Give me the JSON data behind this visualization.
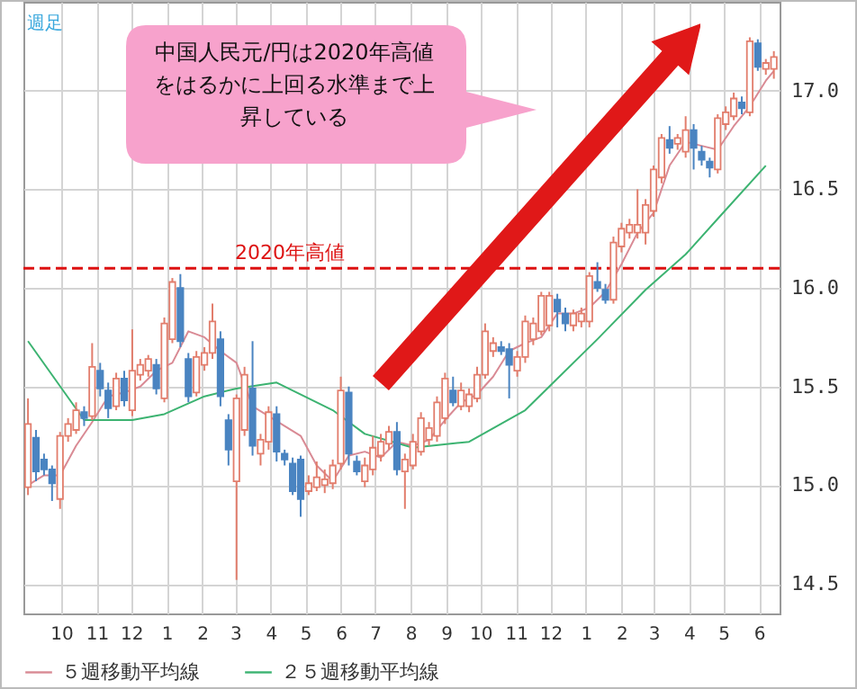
{
  "chart_data": {
    "type": "candlestick",
    "x": [
      "2019-09-02",
      "2019-09-09",
      "2019-09-16",
      "2019-09-23",
      "2019-09-30",
      "2019-10-07",
      "2019-10-14",
      "2019-10-21",
      "2019-10-28",
      "2019-11-04",
      "2019-11-11",
      "2019-11-18",
      "2019-11-25",
      "2019-12-02",
      "2019-12-09",
      "2019-12-16",
      "2019-12-23",
      "2019-12-30",
      "2020-01-06",
      "2020-01-13",
      "2020-01-20",
      "2020-01-27",
      "2020-02-03",
      "2020-02-10",
      "2020-02-17",
      "2020-02-24",
      "2020-03-02",
      "2020-03-09",
      "2020-03-16",
      "2020-03-23",
      "2020-03-30",
      "2020-04-06",
      "2020-04-13",
      "2020-04-20",
      "2020-04-27",
      "2020-05-04",
      "2020-05-11",
      "2020-05-18",
      "2020-05-25",
      "2020-06-01",
      "2020-06-08",
      "2020-06-15",
      "2020-06-22",
      "2020-06-29",
      "2020-07-06",
      "2020-07-13",
      "2020-07-20",
      "2020-07-27",
      "2020-08-03",
      "2020-08-10",
      "2020-08-17",
      "2020-08-24",
      "2020-08-31",
      "2020-09-07",
      "2020-09-14",
      "2020-09-21",
      "2020-09-28",
      "2020-10-05",
      "2020-10-12",
      "2020-10-19",
      "2020-10-26",
      "2020-11-02",
      "2020-11-09",
      "2020-11-16",
      "2020-11-23",
      "2020-11-30",
      "2020-12-07",
      "2020-12-14",
      "2020-12-21",
      "2020-12-28",
      "2021-01-04",
      "2021-01-11",
      "2021-01-18",
      "2021-01-25",
      "2021-02-01",
      "2021-02-08",
      "2021-02-15",
      "2021-02-22",
      "2021-03-01",
      "2021-03-08",
      "2021-03-15",
      "2021-03-22",
      "2021-03-29",
      "2021-04-05",
      "2021-04-12",
      "2021-04-19",
      "2021-04-26",
      "2021-05-03",
      "2021-05-10",
      "2021-05-17",
      "2021-05-24",
      "2021-05-31",
      "2021-06-07",
      "2021-06-14"
    ],
    "ohlc": [
      [
        14.99,
        15.44,
        14.95,
        15.31
      ],
      [
        15.24,
        15.28,
        15.02,
        15.07
      ],
      [
        15.13,
        15.16,
        15.05,
        15.08
      ],
      [
        15.08,
        15.1,
        14.92,
        15.01
      ],
      [
        14.93,
        15.27,
        14.88,
        15.25
      ],
      [
        15.25,
        15.34,
        15.22,
        15.31
      ],
      [
        15.28,
        15.42,
        15.26,
        15.38
      ],
      [
        15.37,
        15.4,
        15.3,
        15.34
      ],
      [
        15.35,
        15.72,
        15.33,
        15.6
      ],
      [
        15.58,
        15.62,
        15.45,
        15.49
      ],
      [
        15.48,
        15.52,
        15.34,
        15.39
      ],
      [
        15.4,
        15.57,
        15.38,
        15.54
      ],
      [
        15.54,
        15.58,
        15.4,
        15.43
      ],
      [
        15.38,
        15.79,
        15.35,
        15.58
      ],
      [
        15.56,
        15.64,
        15.53,
        15.61
      ],
      [
        15.58,
        15.66,
        15.55,
        15.64
      ],
      [
        15.61,
        15.64,
        15.46,
        15.49
      ],
      [
        15.44,
        15.85,
        15.42,
        15.82
      ],
      [
        15.74,
        16.05,
        15.72,
        16.03
      ],
      [
        16.0,
        16.07,
        15.7,
        15.73
      ],
      [
        15.64,
        15.67,
        15.42,
        15.45
      ],
      [
        15.47,
        15.68,
        15.45,
        15.65
      ],
      [
        15.61,
        15.7,
        15.58,
        15.67
      ],
      [
        15.67,
        15.92,
        15.64,
        15.83
      ],
      [
        15.74,
        15.78,
        15.4,
        15.45
      ],
      [
        15.33,
        15.36,
        15.1,
        15.18
      ],
      [
        15.02,
        15.46,
        14.52,
        15.44
      ],
      [
        15.28,
        15.6,
        15.25,
        15.56
      ],
      [
        15.49,
        15.73,
        15.15,
        15.2
      ],
      [
        15.16,
        15.26,
        15.1,
        15.23
      ],
      [
        15.22,
        15.4,
        15.18,
        15.37
      ],
      [
        15.36,
        15.4,
        15.12,
        15.17
      ],
      [
        15.16,
        15.18,
        15.1,
        15.13
      ],
      [
        15.11,
        15.14,
        14.95,
        14.97
      ],
      [
        15.13,
        15.15,
        14.84,
        14.93
      ],
      [
        14.97,
        15.05,
        14.95,
        15.01
      ],
      [
        14.99,
        15.12,
        14.97,
        15.04
      ],
      [
        15.0,
        15.08,
        14.96,
        15.03
      ],
      [
        15.01,
        15.13,
        14.98,
        15.1
      ],
      [
        15.11,
        15.55,
        15.08,
        15.48
      ],
      [
        15.47,
        15.5,
        15.1,
        15.16
      ],
      [
        15.12,
        15.15,
        15.05,
        15.07
      ],
      [
        15.02,
        15.14,
        14.99,
        15.1
      ],
      [
        15.08,
        15.25,
        15.05,
        15.19
      ],
      [
        15.15,
        15.26,
        15.12,
        15.22
      ],
      [
        15.21,
        15.3,
        15.18,
        15.27
      ],
      [
        15.27,
        15.32,
        15.05,
        15.08
      ],
      [
        15.07,
        15.16,
        14.88,
        15.13
      ],
      [
        15.1,
        15.26,
        15.08,
        15.22
      ],
      [
        15.17,
        15.37,
        15.15,
        15.34
      ],
      [
        15.23,
        15.32,
        15.2,
        15.29
      ],
      [
        15.25,
        15.45,
        15.22,
        15.42
      ],
      [
        15.34,
        15.57,
        15.31,
        15.54
      ],
      [
        15.48,
        15.55,
        15.4,
        15.42
      ],
      [
        15.4,
        15.52,
        15.38,
        15.48
      ],
      [
        15.4,
        15.49,
        15.37,
        15.46
      ],
      [
        15.44,
        15.6,
        15.42,
        15.56
      ],
      [
        15.56,
        15.82,
        15.54,
        15.78
      ],
      [
        15.68,
        15.75,
        15.65,
        15.72
      ],
      [
        15.7,
        15.73,
        15.66,
        15.68
      ],
      [
        15.69,
        15.72,
        15.44,
        15.61
      ],
      [
        15.58,
        15.68,
        15.55,
        15.65
      ],
      [
        15.65,
        15.86,
        15.62,
        15.83
      ],
      [
        15.74,
        15.85,
        15.71,
        15.82
      ],
      [
        15.78,
        15.98,
        15.76,
        15.96
      ],
      [
        15.81,
        15.98,
        15.78,
        15.96
      ],
      [
        15.94,
        15.97,
        15.8,
        15.88
      ],
      [
        15.87,
        15.9,
        15.78,
        15.82
      ],
      [
        15.81,
        15.89,
        15.78,
        15.87
      ],
      [
        15.83,
        15.9,
        15.8,
        15.87
      ],
      [
        15.83,
        16.08,
        15.8,
        16.06
      ],
      [
        16.03,
        16.13,
        15.98,
        16.0
      ],
      [
        15.99,
        16.02,
        15.92,
        15.94
      ],
      [
        15.94,
        16.26,
        15.92,
        16.23
      ],
      [
        16.21,
        16.33,
        16.18,
        16.3
      ],
      [
        16.28,
        16.35,
        16.25,
        16.32
      ],
      [
        16.28,
        16.5,
        16.25,
        16.32
      ],
      [
        16.28,
        16.45,
        16.22,
        16.42
      ],
      [
        16.39,
        16.62,
        16.36,
        16.6
      ],
      [
        16.56,
        16.78,
        16.53,
        16.76
      ],
      [
        16.75,
        16.82,
        16.68,
        16.71
      ],
      [
        16.73,
        16.78,
        16.7,
        16.76
      ],
      [
        16.69,
        16.87,
        16.66,
        16.8
      ],
      [
        16.8,
        16.83,
        16.6,
        16.71
      ],
      [
        16.69,
        16.72,
        16.62,
        16.65
      ],
      [
        16.64,
        16.66,
        16.56,
        16.61
      ],
      [
        16.6,
        16.88,
        16.58,
        16.86
      ],
      [
        16.83,
        16.92,
        16.8,
        16.89
      ],
      [
        16.87,
        16.99,
        16.85,
        16.96
      ],
      [
        16.94,
        16.97,
        16.88,
        16.91
      ],
      [
        16.89,
        17.27,
        16.87,
        17.25
      ],
      [
        17.24,
        17.26,
        17.1,
        17.12
      ],
      [
        17.11,
        17.16,
        17.08,
        17.14
      ],
      [
        17.11,
        17.2,
        17.06,
        17.17
      ]
    ],
    "series": [
      {
        "name": "５週移動平均線",
        "color": "#d98a94",
        "type": "line",
        "x": [
          "2019-09-02",
          "2019-09-16",
          "2019-09-30",
          "2019-10-14",
          "2019-10-28",
          "2019-11-11",
          "2019-11-25",
          "2019-12-09",
          "2019-12-23",
          "2020-01-06",
          "2020-01-20",
          "2020-02-03",
          "2020-02-17",
          "2020-03-02",
          "2020-03-16",
          "2020-03-30",
          "2020-04-13",
          "2020-04-27",
          "2020-05-11",
          "2020-05-25",
          "2020-06-08",
          "2020-06-22",
          "2020-07-06",
          "2020-07-20",
          "2020-08-03",
          "2020-08-17",
          "2020-08-31",
          "2020-09-14",
          "2020-09-28",
          "2020-10-12",
          "2020-10-26",
          "2020-11-09",
          "2020-11-23",
          "2020-12-07",
          "2020-12-21",
          "2021-01-04",
          "2021-01-18",
          "2021-02-01",
          "2021-02-15",
          "2021-03-01",
          "2021-03-15",
          "2021-03-29",
          "2021-04-12",
          "2021-04-26",
          "2021-05-10",
          "2021-05-24",
          "2021-06-07",
          "2021-06-14"
        ],
        "values": [
          15.0,
          15.05,
          15.05,
          15.2,
          15.32,
          15.45,
          15.47,
          15.5,
          15.58,
          15.62,
          15.78,
          15.75,
          15.68,
          15.62,
          15.4,
          15.35,
          15.3,
          15.25,
          15.1,
          15.02,
          15.15,
          15.17,
          15.14,
          15.22,
          15.2,
          15.23,
          15.33,
          15.42,
          15.46,
          15.55,
          15.68,
          15.72,
          15.75,
          15.87,
          15.87,
          15.9,
          15.98,
          16.12,
          16.28,
          16.38,
          16.62,
          16.74,
          16.72,
          16.7,
          16.82,
          16.92,
          17.05,
          17.1
        ]
      },
      {
        "name": "２５週移動平均線",
        "color": "#3cb371",
        "type": "line",
        "x": [
          "2019-09-02",
          "2019-10-21",
          "2019-12-02",
          "2019-12-30",
          "2020-02-03",
          "2020-03-02",
          "2020-04-06",
          "2020-05-25",
          "2020-06-22",
          "2020-08-03",
          "2020-09-21",
          "2020-11-09",
          "2020-11-30",
          "2021-01-11",
          "2021-02-22",
          "2021-03-29",
          "2021-04-26",
          "2021-06-07"
        ],
        "values": [
          15.73,
          15.33,
          15.33,
          15.36,
          15.45,
          15.49,
          15.52,
          15.38,
          15.26,
          15.19,
          15.22,
          15.38,
          15.5,
          15.74,
          15.99,
          16.17,
          16.35,
          16.62
        ]
      }
    ],
    "xlim": [
      "2019-08-29",
      "2021-06-19"
    ],
    "xticks": [
      {
        "value": "2019-10-01",
        "label": "10"
      },
      {
        "value": "2019-11-01",
        "label": "11"
      },
      {
        "value": "2019-12-01",
        "label": "12"
      },
      {
        "value": "2020-01-01",
        "label": "1"
      },
      {
        "value": "2020-02-01",
        "label": "2"
      },
      {
        "value": "2020-03-01",
        "label": "3"
      },
      {
        "value": "2020-04-01",
        "label": "4"
      },
      {
        "value": "2020-05-01",
        "label": "5"
      },
      {
        "value": "2020-06-01",
        "label": "6"
      },
      {
        "value": "2020-07-01",
        "label": "7"
      },
      {
        "value": "2020-08-01",
        "label": "8"
      },
      {
        "value": "2020-09-01",
        "label": "9"
      },
      {
        "value": "2020-10-01",
        "label": "10"
      },
      {
        "value": "2020-11-01",
        "label": "11"
      },
      {
        "value": "2020-12-01",
        "label": "12"
      },
      {
        "value": "2021-01-01",
        "label": "1"
      },
      {
        "value": "2021-02-01",
        "label": "2"
      },
      {
        "value": "2021-03-01",
        "label": "3"
      },
      {
        "value": "2021-04-01",
        "label": "4"
      },
      {
        "value": "2021-05-01",
        "label": "5"
      },
      {
        "value": "2021-06-01",
        "label": "6"
      }
    ],
    "ylim": [
      14.35,
      17.45
    ],
    "yticks": [
      {
        "value": 14.5,
        "label": "14.5"
      },
      {
        "value": 15,
        "label": "15.0"
      },
      {
        "value": 15.5,
        "label": "15.5"
      },
      {
        "value": 16,
        "label": "16.0"
      },
      {
        "value": 16.5,
        "label": "16.5"
      },
      {
        "value": 17,
        "label": "17.0"
      }
    ],
    "ref_lines": [
      {
        "axis": "y",
        "value": 16.1,
        "label": "2020年高値",
        "color": "#dd1111",
        "line_style": "dashed"
      }
    ],
    "annotations": [
      "週足",
      "中国人民元/円は2020年高値をはるかに上回る水準まで上昇している"
    ],
    "grid": true,
    "legend": "bottom"
  }
}
